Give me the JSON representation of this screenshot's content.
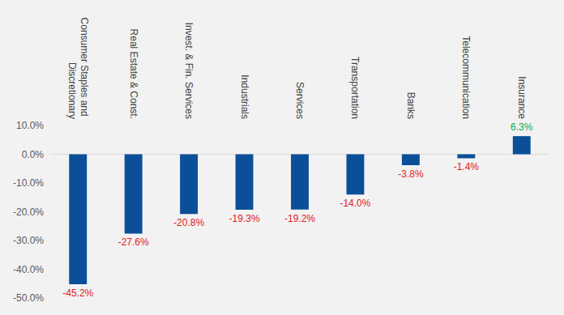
{
  "chart_data": {
    "type": "bar",
    "categories": [
      "Consumer Staples and Discretionary",
      "Real Estate & Const.",
      "Invest. & Fin. Services",
      "Industrials",
      "Services",
      "Transportation",
      "Banks",
      "Telecommunication",
      "Insurance"
    ],
    "values": [
      -45.2,
      -27.6,
      -20.8,
      -19.3,
      -19.2,
      -14.0,
      -3.8,
      -1.4,
      6.3
    ],
    "value_labels": [
      "-45.2%",
      "-27.6%",
      "-20.8%",
      "-19.3%",
      "-19.2%",
      "-14.0%",
      "-3.8%",
      "-1.4%",
      "6.3%"
    ],
    "color": "#0b4f98",
    "ylim": [
      -50,
      10
    ],
    "yticks": [
      {
        "value": -50,
        "label": "-50.0%"
      },
      {
        "value": -40,
        "label": "-40.0%"
      },
      {
        "value": -30,
        "label": "-30.0%"
      },
      {
        "value": -20,
        "label": "-20.0%"
      },
      {
        "value": -10,
        "label": "-10.0%"
      },
      {
        "value": 0,
        "label": "0.0%"
      },
      {
        "value": 10,
        "label": "10.0%"
      }
    ],
    "grid": false,
    "data_labels": true
  }
}
